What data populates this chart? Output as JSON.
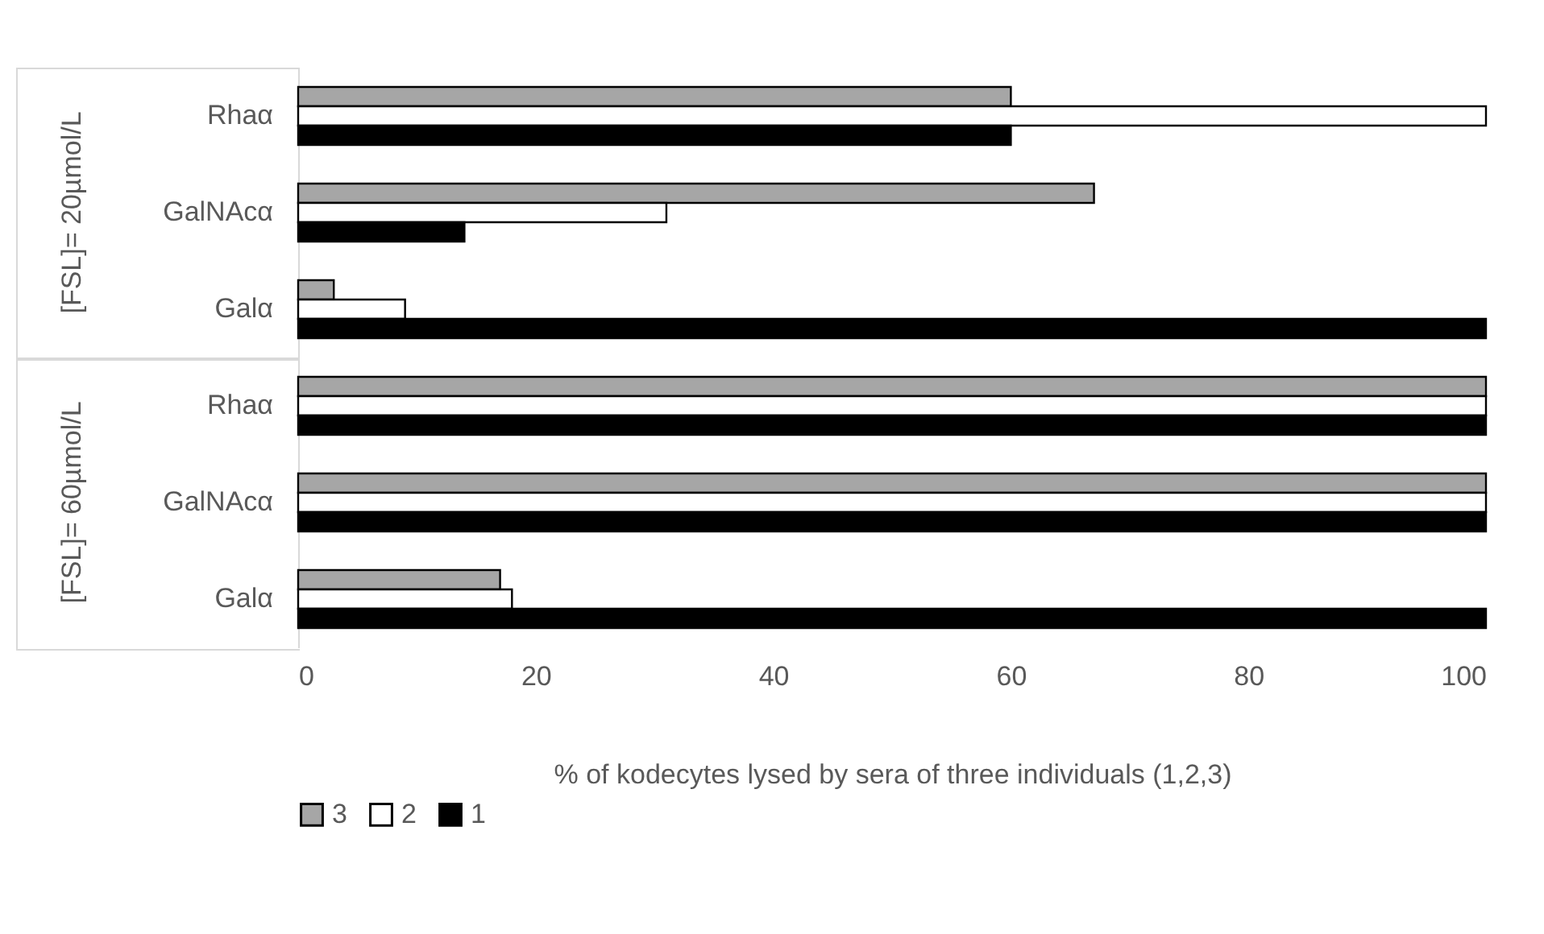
{
  "chart_data": {
    "type": "bar",
    "orientation": "horizontal",
    "categories": [
      "Rhaα",
      "GalNAcα",
      "Galα",
      "Rhaα",
      "GalNAcα",
      "Galα"
    ],
    "series": [
      {
        "name": "3",
        "color": "#a6a6a6",
        "values": [
          60,
          67,
          3,
          100,
          100,
          17
        ]
      },
      {
        "name": "2",
        "color": "#ffffff",
        "values": [
          100,
          31,
          9,
          100,
          100,
          18
        ]
      },
      {
        "name": "1",
        "color": "#000000",
        "values": [
          60,
          14,
          100,
          100,
          100,
          100
        ]
      }
    ],
    "xlim": [
      0,
      100
    ],
    "xticks": [
      0,
      20,
      40,
      60,
      80,
      100
    ],
    "xlabel": "% of kodecytes lysed by sera of three individuals (1,2,3)",
    "legend": "bottom",
    "annotations": [
      "[FSL]= 20µmol/L",
      "[FSL]= 60µmol/L"
    ]
  }
}
